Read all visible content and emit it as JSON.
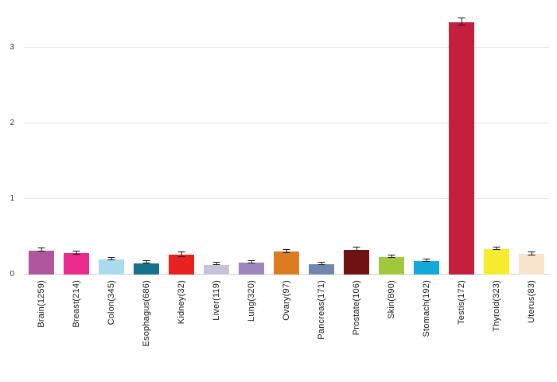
{
  "chart_data": {
    "type": "bar",
    "title": "",
    "xlabel": "",
    "ylabel": "",
    "categories": [
      "Brain(1259)",
      "Breast(214)",
      "Colon(345)",
      "Esophagus(686)",
      "Kidney(32)",
      "Liver(119)",
      "Lung(320)",
      "Ovary(97)",
      "Pancreas(171)",
      "Prostate(106)",
      "Skin(890)",
      "Stomach(192)",
      "Testis(172)",
      "Thyroid(323)",
      "Uterus(83)"
    ],
    "values": [
      0.32,
      0.28,
      0.2,
      0.15,
      0.26,
      0.13,
      0.16,
      0.3,
      0.14,
      0.33,
      0.23,
      0.18,
      3.33,
      0.34,
      0.27
    ],
    "errors": [
      0.012,
      0.015,
      0.01,
      0.007,
      0.025,
      0.008,
      0.008,
      0.015,
      0.01,
      0.018,
      0.01,
      0.012,
      0.045,
      0.012,
      0.015
    ],
    "bar_colors": [
      "#b0569e",
      "#ea2a8c",
      "#aadcee",
      "#15718d",
      "#e8201e",
      "#c9c0dc",
      "#a084bc",
      "#dc7c20",
      "#7186ae",
      "#701212",
      "#a0c83a",
      "#12a8d8",
      "#c41f3e",
      "#f4ec2c",
      "#f8e3cc"
    ],
    "ylim": [
      0,
      3.5
    ],
    "yticks": [
      0,
      1,
      2,
      3
    ],
    "grid": true,
    "legend": false,
    "error_bar_color": "#1a1a1a",
    "background_color": "#ffffff"
  }
}
